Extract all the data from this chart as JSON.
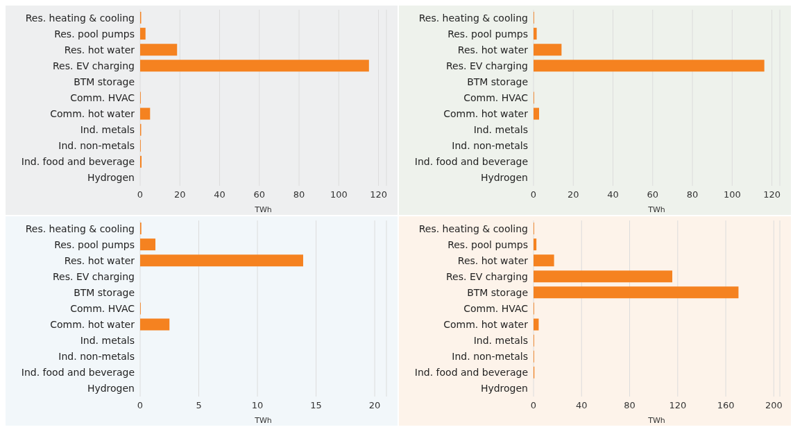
{
  "chart_data": [
    {
      "type": "bar",
      "orientation": "horizontal",
      "categories": [
        "Res. heating & cooling",
        "Res. pool pumps",
        "Res. hot water",
        "Res. EV charging",
        "BTM storage",
        "Comm. HVAC",
        "Comm. hot water",
        "Ind. metals",
        "Ind. non-metals",
        "Ind. food and beverage",
        "Hydrogen"
      ],
      "values": [
        0.5,
        2.7,
        18.6,
        115.2,
        0,
        0.3,
        5.0,
        0.5,
        0.3,
        0.7,
        0
      ],
      "color": "#f58220",
      "xlabel": "TWh",
      "xlim": [
        0,
        124
      ],
      "xticks": [
        0,
        20,
        40,
        60,
        80,
        100,
        120
      ],
      "grid": "x"
    },
    {
      "type": "bar",
      "orientation": "horizontal",
      "categories": [
        "Res. heating & cooling",
        "Res. pool pumps",
        "Res. hot water",
        "Res. EV charging",
        "BTM storage",
        "Comm. HVAC",
        "Comm. hot water",
        "Ind. metals",
        "Ind. non-metals",
        "Ind. food and beverage",
        "Hydrogen"
      ],
      "values": [
        0.3,
        1.6,
        14.1,
        116.2,
        0,
        0.3,
        2.8,
        0,
        0,
        0,
        0
      ],
      "color": "#f58220",
      "xlabel": "TWh",
      "xlim": [
        0,
        124
      ],
      "xticks": [
        0,
        20,
        40,
        60,
        80,
        100,
        120
      ],
      "grid": "x"
    },
    {
      "type": "bar",
      "orientation": "horizontal",
      "categories": [
        "Res. heating & cooling",
        "Res. pool pumps",
        "Res. hot water",
        "Res. EV charging",
        "BTM storage",
        "Comm. HVAC",
        "Comm. hot water",
        "Ind. metals",
        "Ind. non-metals",
        "Ind. food and beverage",
        "Hydrogen"
      ],
      "values": [
        0.1,
        1.3,
        13.9,
        0,
        0,
        0.05,
        2.5,
        0,
        0,
        0,
        0
      ],
      "color": "#f58220",
      "xlabel": "TWh",
      "xlim": [
        0,
        21
      ],
      "xticks": [
        0,
        5,
        10,
        15,
        20
      ],
      "grid": "x"
    },
    {
      "type": "bar",
      "orientation": "horizontal",
      "categories": [
        "Res. heating & cooling",
        "Res. pool pumps",
        "Res. hot water",
        "Res. EV charging",
        "BTM storage",
        "Comm. HVAC",
        "Comm. hot water",
        "Ind. metals",
        "Ind. non-metals",
        "Ind. food and beverage",
        "Hydrogen"
      ],
      "values": [
        0.5,
        2.4,
        17.1,
        115.5,
        170.6,
        0.5,
        4.3,
        0.5,
        0.5,
        0.7,
        0
      ],
      "color": "#f58220",
      "xlabel": "TWh",
      "xlim": [
        0,
        205
      ],
      "xticks": [
        0,
        40,
        80,
        120,
        160,
        200
      ],
      "grid": "x"
    }
  ]
}
